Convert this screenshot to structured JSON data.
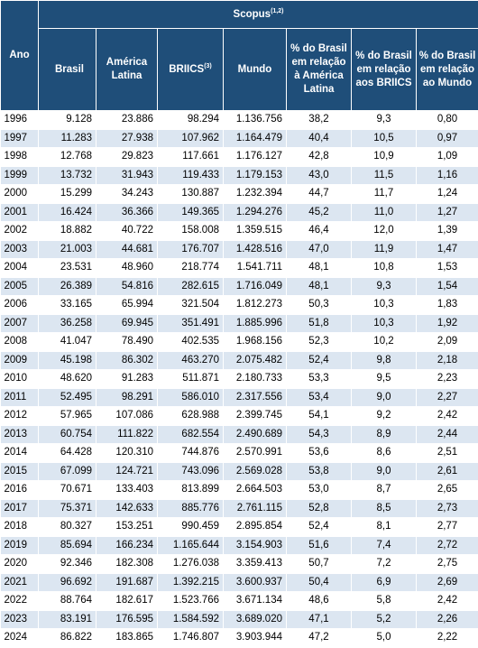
{
  "table": {
    "headers": {
      "year": "Ano",
      "group_title": "Scopus",
      "group_sup": "(1,2)",
      "brasil": "Brasil",
      "america_latina": "América Latina",
      "briics": "BRIICS",
      "briics_sup": "(3)",
      "mundo": "Mundo",
      "pct_al": "% do Brasil em relação à América Latina",
      "pct_briics": "% do Brasil em relação aos BRIICS",
      "pct_mundo": "% do Brasil em relação ao Mundo"
    },
    "rows": [
      [
        "1996",
        "9.128",
        "23.886",
        "98.294",
        "1.136.756",
        "38,2",
        "9,3",
        "0,80"
      ],
      [
        "1997",
        "11.283",
        "27.938",
        "107.962",
        "1.164.479",
        "40,4",
        "10,5",
        "0,97"
      ],
      [
        "1998",
        "12.768",
        "29.823",
        "117.661",
        "1.176.127",
        "42,8",
        "10,9",
        "1,09"
      ],
      [
        "1999",
        "13.732",
        "31.943",
        "119.433",
        "1.179.153",
        "43,0",
        "11,5",
        "1,16"
      ],
      [
        "2000",
        "15.299",
        "34.243",
        "130.887",
        "1.232.394",
        "44,7",
        "11,7",
        "1,24"
      ],
      [
        "2001",
        "16.424",
        "36.366",
        "149.365",
        "1.294.276",
        "45,2",
        "11,0",
        "1,27"
      ],
      [
        "2002",
        "18.882",
        "40.722",
        "158.008",
        "1.359.515",
        "46,4",
        "12,0",
        "1,39"
      ],
      [
        "2003",
        "21.003",
        "44.681",
        "176.707",
        "1.428.516",
        "47,0",
        "11,9",
        "1,47"
      ],
      [
        "2004",
        "23.531",
        "48.960",
        "218.774",
        "1.541.711",
        "48,1",
        "10,8",
        "1,53"
      ],
      [
        "2005",
        "26.389",
        "54.816",
        "282.615",
        "1.716.049",
        "48,1",
        "9,3",
        "1,54"
      ],
      [
        "2006",
        "33.165",
        "65.994",
        "321.504",
        "1.812.273",
        "50,3",
        "10,3",
        "1,83"
      ],
      [
        "2007",
        "36.258",
        "69.945",
        "351.491",
        "1.885.996",
        "51,8",
        "10,3",
        "1,92"
      ],
      [
        "2008",
        "41.047",
        "78.490",
        "402.535",
        "1.968.156",
        "52,3",
        "10,2",
        "2,09"
      ],
      [
        "2009",
        "45.198",
        "86.302",
        "463.270",
        "2.075.482",
        "52,4",
        "9,8",
        "2,18"
      ],
      [
        "2010",
        "48.620",
        "91.283",
        "511.871",
        "2.180.733",
        "53,3",
        "9,5",
        "2,23"
      ],
      [
        "2011",
        "52.495",
        "98.291",
        "586.010",
        "2.317.556",
        "53,4",
        "9,0",
        "2,27"
      ],
      [
        "2012",
        "57.965",
        "107.086",
        "628.988",
        "2.399.745",
        "54,1",
        "9,2",
        "2,42"
      ],
      [
        "2013",
        "60.754",
        "111.822",
        "682.554",
        "2.490.689",
        "54,3",
        "8,9",
        "2,44"
      ],
      [
        "2014",
        "64.428",
        "120.310",
        "744.876",
        "2.570.991",
        "53,6",
        "8,6",
        "2,51"
      ],
      [
        "2015",
        "67.099",
        "124.721",
        "743.096",
        "2.569.028",
        "53,8",
        "9,0",
        "2,61"
      ],
      [
        "2016",
        "70.671",
        "133.403",
        "813.899",
        "2.664.503",
        "53,0",
        "8,7",
        "2,65"
      ],
      [
        "2017",
        "75.371",
        "142.633",
        "885.776",
        "2.761.115",
        "52,8",
        "8,5",
        "2,73"
      ],
      [
        "2018",
        "80.327",
        "153.251",
        "990.459",
        "2.895.854",
        "52,4",
        "8,1",
        "2,77"
      ],
      [
        "2019",
        "85.694",
        "166.234",
        "1.165.644",
        "3.154.903",
        "51,6",
        "7,4",
        "2,72"
      ],
      [
        "2020",
        "92.346",
        "182.308",
        "1.276.038",
        "3.359.413",
        "50,7",
        "7,2",
        "2,75"
      ],
      [
        "2021",
        "96.692",
        "191.687",
        "1.392.215",
        "3.600.937",
        "50,4",
        "6,9",
        "2,69"
      ],
      [
        "2022",
        "88.764",
        "182.617",
        "1.523.766",
        "3.671.134",
        "48,6",
        "5,8",
        "2,42"
      ],
      [
        "2023",
        "83.191",
        "176.595",
        "1.584.592",
        "3.689.020",
        "47,1",
        "5,2",
        "2,26"
      ],
      [
        "2024",
        "86.822",
        "183.865",
        "1.746.807",
        "3.903.944",
        "47,2",
        "5,0",
        "2,22"
      ]
    ]
  }
}
